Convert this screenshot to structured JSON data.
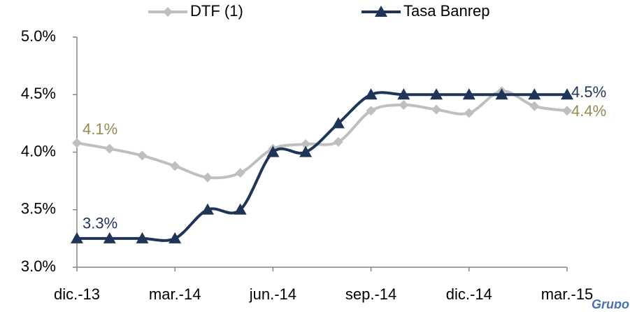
{
  "chart_data": {
    "type": "line",
    "categories": [
      "dic.-13",
      null,
      null,
      "mar.-14",
      null,
      null,
      "jun.-14",
      null,
      null,
      "sep.-14",
      null,
      null,
      "dic.-14",
      null,
      null,
      "mar.-15"
    ],
    "series": [
      {
        "name": "DTF (1)",
        "color": "#bfbfbf",
        "marker": "diamond",
        "values": [
          4.08,
          4.03,
          3.97,
          3.88,
          3.78,
          3.82,
          4.03,
          4.07,
          4.09,
          4.36,
          4.41,
          4.37,
          4.34,
          4.53,
          4.4,
          4.36
        ],
        "value_labels": [
          "4.1%",
          null,
          null,
          null,
          null,
          null,
          null,
          null,
          null,
          null,
          null,
          null,
          null,
          null,
          null,
          "4.4%"
        ],
        "label_color": "#948a54"
      },
      {
        "name": "Tasa Banrep",
        "color": "#1f3557",
        "marker": "triangle",
        "values": [
          3.25,
          3.25,
          3.25,
          3.25,
          3.5,
          3.5,
          4.0,
          4.0,
          4.25,
          4.5,
          4.5,
          4.5,
          4.5,
          4.5,
          4.5,
          4.5
        ],
        "value_labels": [
          "3.3%",
          null,
          null,
          null,
          null,
          null,
          null,
          null,
          null,
          null,
          null,
          null,
          null,
          null,
          null,
          "4.5%"
        ],
        "label_color": "#1f3557"
      }
    ],
    "ylim": [
      3.0,
      5.0
    ],
    "yticks": [
      {
        "value": 3.0,
        "label": "3.0%"
      },
      {
        "value": 3.5,
        "label": "3.5%"
      },
      {
        "value": 4.0,
        "label": "4.0%"
      },
      {
        "value": 4.5,
        "label": "4.5%"
      },
      {
        "value": 5.0,
        "label": "5.0%"
      }
    ],
    "grid": false,
    "legend": "top",
    "watermark": "Grupo"
  }
}
